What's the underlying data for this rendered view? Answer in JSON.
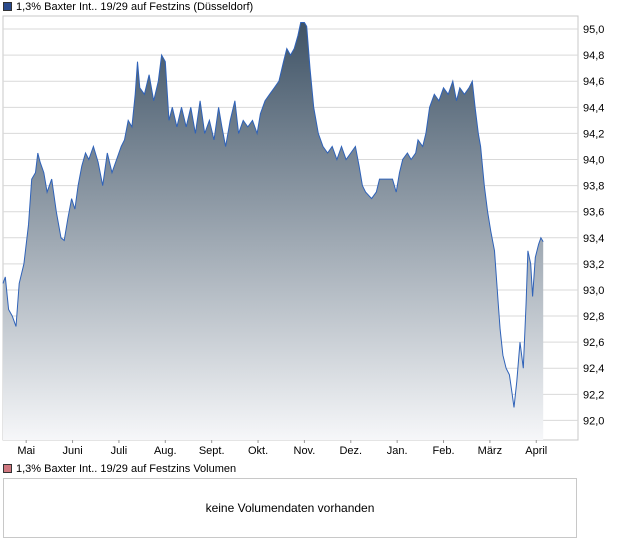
{
  "price_legend": {
    "label": "1,3% Baxter Int.. 19/29 auf Festzins (Düsseldorf)",
    "color": "#2a4a8c"
  },
  "volume_legend": {
    "label": "1,3% Baxter Int.. 19/29 auf Festzins Volumen",
    "color": "#d07880"
  },
  "volume_message": "keine Volumendaten vorhanden",
  "colors": {
    "line": "#2f62b8",
    "fill_top": "#3f5366",
    "fill_bottom": "#f6f7f9",
    "grid": "#d9d9d9"
  },
  "chart_data": {
    "type": "area",
    "ylim": [
      91.85,
      95.1
    ],
    "y_ticks": [
      "95,0",
      "94,8",
      "94,6",
      "94,4",
      "94,2",
      "94,0",
      "93,8",
      "93,6",
      "93,4",
      "93,2",
      "93,0",
      "92,8",
      "92,6",
      "92,4",
      "92,2",
      "92,0"
    ],
    "x_ticks": [
      "Mai",
      "Juni",
      "Juli",
      "Aug.",
      "Sept.",
      "Okt.",
      "Nov.",
      "Dez.",
      "Jan.",
      "Feb.",
      "März",
      "April"
    ],
    "x_tick_positions": [
      0.5,
      1.5,
      2.5,
      3.5,
      4.5,
      5.5,
      6.5,
      7.5,
      8.5,
      9.5,
      10.5,
      11.5
    ],
    "x_range": [
      0,
      12.4
    ],
    "grid": true,
    "series": [
      {
        "values": [
          [
            0.0,
            93.05
          ],
          [
            0.05,
            93.1
          ],
          [
            0.12,
            92.85
          ],
          [
            0.2,
            92.8
          ],
          [
            0.28,
            92.72
          ],
          [
            0.35,
            93.05
          ],
          [
            0.45,
            93.2
          ],
          [
            0.55,
            93.5
          ],
          [
            0.62,
            93.85
          ],
          [
            0.7,
            93.9
          ],
          [
            0.75,
            94.05
          ],
          [
            0.8,
            93.98
          ],
          [
            0.88,
            93.9
          ],
          [
            0.95,
            93.75
          ],
          [
            1.05,
            93.85
          ],
          [
            1.15,
            93.6
          ],
          [
            1.25,
            93.4
          ],
          [
            1.32,
            93.38
          ],
          [
            1.4,
            93.55
          ],
          [
            1.48,
            93.7
          ],
          [
            1.55,
            93.62
          ],
          [
            1.62,
            93.8
          ],
          [
            1.7,
            93.95
          ],
          [
            1.78,
            94.05
          ],
          [
            1.85,
            94.0
          ],
          [
            1.95,
            94.1
          ],
          [
            2.05,
            93.98
          ],
          [
            2.15,
            93.8
          ],
          [
            2.25,
            94.05
          ],
          [
            2.35,
            93.9
          ],
          [
            2.45,
            94.0
          ],
          [
            2.55,
            94.1
          ],
          [
            2.62,
            94.15
          ],
          [
            2.7,
            94.3
          ],
          [
            2.78,
            94.25
          ],
          [
            2.85,
            94.5
          ],
          [
            2.9,
            94.75
          ],
          [
            2.95,
            94.55
          ],
          [
            3.05,
            94.5
          ],
          [
            3.15,
            94.65
          ],
          [
            3.25,
            94.45
          ],
          [
            3.35,
            94.6
          ],
          [
            3.42,
            94.8
          ],
          [
            3.5,
            94.75
          ],
          [
            3.58,
            94.3
          ],
          [
            3.65,
            94.4
          ],
          [
            3.75,
            94.25
          ],
          [
            3.85,
            94.4
          ],
          [
            3.95,
            94.25
          ],
          [
            4.05,
            94.4
          ],
          [
            4.15,
            94.2
          ],
          [
            4.25,
            94.45
          ],
          [
            4.35,
            94.2
          ],
          [
            4.45,
            94.3
          ],
          [
            4.55,
            94.15
          ],
          [
            4.65,
            94.4
          ],
          [
            4.72,
            94.25
          ],
          [
            4.8,
            94.1
          ],
          [
            4.9,
            94.3
          ],
          [
            5.0,
            94.45
          ],
          [
            5.08,
            94.2
          ],
          [
            5.18,
            94.3
          ],
          [
            5.28,
            94.25
          ],
          [
            5.38,
            94.3
          ],
          [
            5.48,
            94.2
          ],
          [
            5.55,
            94.35
          ],
          [
            5.65,
            94.45
          ],
          [
            5.75,
            94.5
          ],
          [
            5.85,
            94.55
          ],
          [
            5.95,
            94.6
          ],
          [
            6.05,
            94.75
          ],
          [
            6.12,
            94.85
          ],
          [
            6.2,
            94.8
          ],
          [
            6.28,
            94.85
          ],
          [
            6.36,
            94.95
          ],
          [
            6.42,
            95.05
          ],
          [
            6.5,
            95.05
          ],
          [
            6.55,
            95.02
          ],
          [
            6.62,
            94.7
          ],
          [
            6.7,
            94.4
          ],
          [
            6.8,
            94.2
          ],
          [
            6.9,
            94.1
          ],
          [
            7.0,
            94.05
          ],
          [
            7.1,
            94.1
          ],
          [
            7.2,
            94.0
          ],
          [
            7.3,
            94.1
          ],
          [
            7.4,
            94.0
          ],
          [
            7.5,
            94.05
          ],
          [
            7.6,
            94.1
          ],
          [
            7.68,
            93.95
          ],
          [
            7.75,
            93.8
          ],
          [
            7.82,
            93.75
          ],
          [
            7.95,
            93.7
          ],
          [
            8.05,
            93.75
          ],
          [
            8.12,
            93.85
          ],
          [
            8.25,
            93.85
          ],
          [
            8.4,
            93.85
          ],
          [
            8.48,
            93.75
          ],
          [
            8.55,
            93.9
          ],
          [
            8.62,
            94.0
          ],
          [
            8.72,
            94.05
          ],
          [
            8.8,
            94.0
          ],
          [
            8.9,
            94.05
          ],
          [
            8.95,
            94.15
          ],
          [
            9.05,
            94.1
          ],
          [
            9.12,
            94.2
          ],
          [
            9.2,
            94.4
          ],
          [
            9.3,
            94.5
          ],
          [
            9.4,
            94.45
          ],
          [
            9.5,
            94.55
          ],
          [
            9.6,
            94.5
          ],
          [
            9.7,
            94.6
          ],
          [
            9.78,
            94.45
          ],
          [
            9.85,
            94.55
          ],
          [
            9.95,
            94.5
          ],
          [
            10.05,
            94.55
          ],
          [
            10.12,
            94.6
          ],
          [
            10.18,
            94.4
          ],
          [
            10.25,
            94.2
          ],
          [
            10.3,
            94.1
          ],
          [
            10.38,
            93.8
          ],
          [
            10.45,
            93.6
          ],
          [
            10.52,
            93.45
          ],
          [
            10.6,
            93.3
          ],
          [
            10.68,
            92.9
          ],
          [
            10.72,
            92.7
          ],
          [
            10.78,
            92.5
          ],
          [
            10.85,
            92.4
          ],
          [
            10.92,
            92.35
          ],
          [
            10.98,
            92.2
          ],
          [
            11.02,
            92.1
          ],
          [
            11.08,
            92.3
          ],
          [
            11.15,
            92.6
          ],
          [
            11.22,
            92.4
          ],
          [
            11.28,
            92.9
          ],
          [
            11.32,
            93.3
          ],
          [
            11.38,
            93.2
          ],
          [
            11.42,
            92.95
          ],
          [
            11.48,
            93.25
          ],
          [
            11.55,
            93.35
          ],
          [
            11.6,
            93.4
          ],
          [
            11.65,
            93.37
          ]
        ]
      }
    ]
  }
}
